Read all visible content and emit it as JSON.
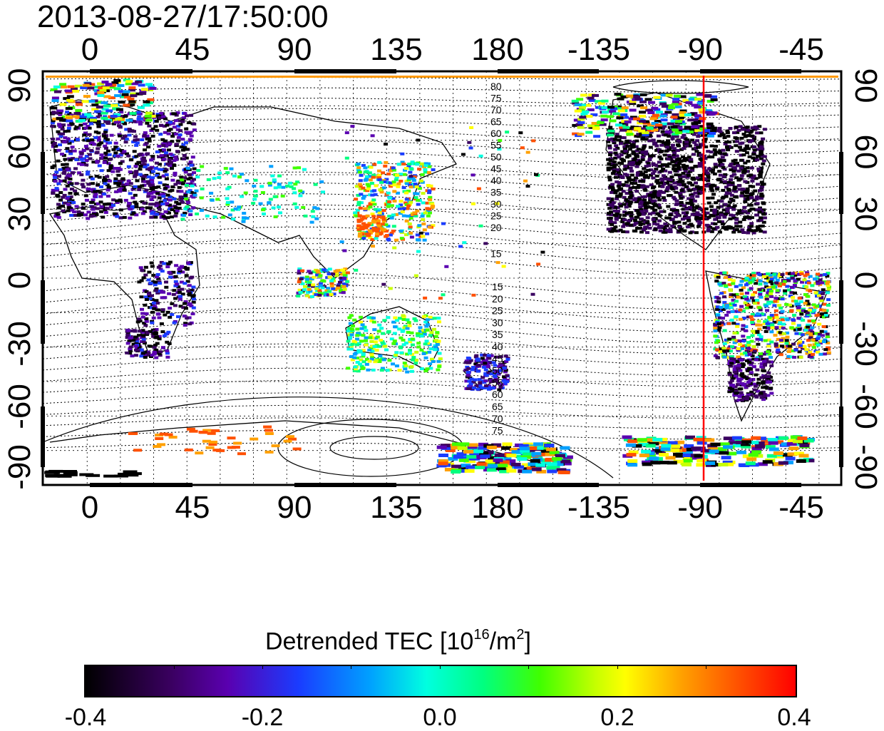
{
  "title": "2013-08-27/17:50:00",
  "lon_ticks_top": [
    "0",
    "45",
    "90",
    "135",
    "180",
    "-135",
    "-90",
    "-45"
  ],
  "lon_ticks_bottom": [
    "0",
    "45",
    "90",
    "135",
    "180",
    "-135",
    "-90",
    "-45"
  ],
  "lat_ticks_left": [
    "90",
    "60",
    "30",
    "0",
    "-30",
    "-60",
    "-90"
  ],
  "lat_ticks_right": [
    "90",
    "60",
    "30",
    "0",
    "-30",
    "-60",
    "-90"
  ],
  "contour_labels_north": [
    "80",
    "75",
    "70",
    "65",
    "60",
    "55",
    "50",
    "45",
    "40",
    "35",
    "30",
    "25",
    "20",
    "15"
  ],
  "contour_labels_south": [
    "15",
    "20",
    "25",
    "30",
    "35",
    "40",
    "45",
    "50",
    "55",
    "60",
    "65",
    "70",
    "75"
  ],
  "colorbar": {
    "title_main": "Detrended TEC  [10",
    "title_sup1": "16",
    "title_mid": "/m",
    "title_sup2": "2",
    "title_end": "]",
    "labels": [
      "-0.4",
      "-0.2",
      "0.0",
      "0.2",
      "0.4"
    ],
    "min": -0.4,
    "max": 0.4
  },
  "terminator_marker": {
    "lon": -90,
    "color": "#ff0000"
  },
  "map_extent": {
    "lon_min": -20,
    "lon_max": 340,
    "lat_min": -90,
    "lat_max": 90
  }
}
